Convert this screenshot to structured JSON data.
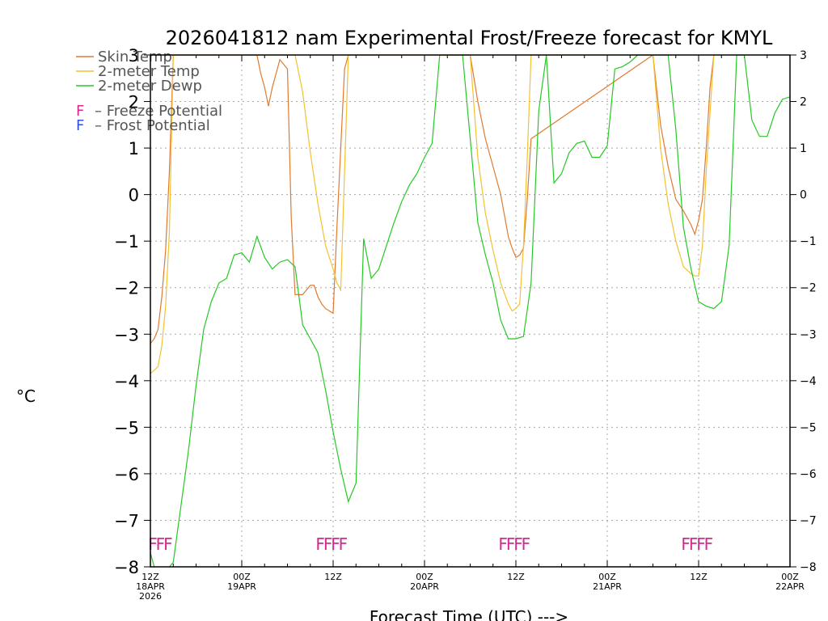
{
  "chart_data": {
    "type": "line",
    "title": "2026041812 nam Experimental Frost/Freeze forecast for KMYL",
    "xlabel": "Forecast Time (UTC) --->",
    "ylabel": "°C",
    "ylim": [
      -8,
      3
    ],
    "xlim": [
      0,
      84
    ],
    "grid": true,
    "y_ticks": [
      {
        "v": 3,
        "label": "3"
      },
      {
        "v": 2,
        "label": "2"
      },
      {
        "v": 1,
        "label": "1"
      },
      {
        "v": 0,
        "label": "0"
      },
      {
        "v": -1,
        "label": "−1"
      },
      {
        "v": -2,
        "label": "−2"
      },
      {
        "v": -3,
        "label": "−3"
      },
      {
        "v": -4,
        "label": "−4"
      },
      {
        "v": -5,
        "label": "−5"
      },
      {
        "v": -6,
        "label": "−6"
      },
      {
        "v": -7,
        "label": "−7"
      },
      {
        "v": -8,
        "label": "−8"
      }
    ],
    "x_ticks": [
      {
        "h": 0,
        "lines": [
          "12Z",
          "18APR",
          "2026"
        ]
      },
      {
        "h": 12,
        "lines": [
          "00Z",
          "19APR"
        ]
      },
      {
        "h": 24,
        "lines": [
          "12Z"
        ]
      },
      {
        "h": 36,
        "lines": [
          "00Z",
          "20APR"
        ]
      },
      {
        "h": 48,
        "lines": [
          "12Z"
        ]
      },
      {
        "h": 60,
        "lines": [
          "00Z",
          "21APR"
        ]
      },
      {
        "h": 72,
        "lines": [
          "12Z"
        ]
      },
      {
        "h": 84,
        "lines": [
          "00Z",
          "22APR"
        ]
      }
    ],
    "series": [
      {
        "name": "Skin Temp",
        "color": "#e07a30",
        "x": [
          0,
          0.5,
          1,
          1.5,
          2,
          2.5,
          3,
          14,
          14.5,
          15,
          15.5,
          16,
          16.5,
          17,
          18,
          18.5,
          19,
          19.5,
          20,
          20.5,
          21,
          21.5,
          22,
          22.5,
          23,
          23.5,
          24,
          24.5,
          25,
          25.5,
          26,
          42,
          43,
          44,
          45,
          46,
          47,
          47.5,
          48,
          48.5,
          49,
          49.5,
          50,
          66,
          67,
          68,
          69,
          70,
          71,
          71.5,
          72,
          72.5,
          73,
          73.5,
          74
        ],
        "y": [
          -3.2,
          -3.1,
          -2.9,
          -2.2,
          -1.2,
          0.5,
          3.0,
          3.0,
          2.6,
          2.3,
          1.9,
          2.3,
          2.6,
          2.9,
          2.7,
          -0.5,
          -2.15,
          -2.15,
          -2.15,
          -2.05,
          -1.95,
          -1.95,
          -2.2,
          -2.35,
          -2.45,
          -2.5,
          -2.55,
          -0.7,
          1.0,
          2.7,
          3.0,
          3.0,
          2.0,
          1.2,
          0.6,
          0.0,
          -0.9,
          -1.15,
          -1.35,
          -1.3,
          -1.15,
          -0.1,
          1.2,
          3.0,
          1.5,
          0.6,
          -0.1,
          -0.35,
          -0.65,
          -0.85,
          -0.55,
          -0.1,
          1.0,
          2.3,
          3.0
        ]
      },
      {
        "name": "2-meter Temp",
        "color": "#f2c230",
        "x": [
          0,
          1,
          1.5,
          2,
          2.5,
          3,
          19,
          20,
          21,
          22,
          23,
          24,
          24.5,
          25,
          26,
          42,
          43,
          44,
          45,
          46,
          47,
          47.5,
          48,
          48.5,
          49,
          49.5,
          50,
          66,
          67,
          68,
          69,
          70,
          71,
          71.5,
          72,
          72.5,
          73,
          74
        ],
        "y": [
          -3.85,
          -3.7,
          -3.25,
          -2.4,
          -0.8,
          3.0,
          3.0,
          2.2,
          0.9,
          -0.2,
          -1.1,
          -1.6,
          -1.9,
          -2.05,
          3.0,
          3.0,
          0.8,
          -0.4,
          -1.2,
          -1.9,
          -2.35,
          -2.5,
          -2.45,
          -2.35,
          -1.1,
          0.8,
          3.0,
          3.0,
          1.0,
          -0.2,
          -1.0,
          -1.55,
          -1.7,
          -1.75,
          -1.75,
          -1.1,
          0.5,
          3.0
        ]
      },
      {
        "name": "2-meter Dewp",
        "color": "#26c826",
        "x": [
          0,
          0.5,
          1,
          1.5,
          2,
          2.5,
          3,
          4,
          5,
          6,
          7,
          8,
          9,
          10,
          11,
          12,
          13,
          14,
          15,
          16,
          17,
          18,
          19,
          20,
          21,
          22,
          23,
          24,
          25,
          26,
          27,
          28,
          29,
          30,
          31,
          32,
          33,
          34,
          35,
          36,
          37,
          38,
          39,
          40,
          41,
          42,
          43,
          44,
          45,
          46,
          47,
          48,
          49,
          50,
          51,
          52,
          53,
          54,
          55,
          56,
          57,
          58,
          59,
          60,
          61,
          62,
          63,
          64,
          65,
          66,
          67,
          68,
          69,
          70,
          71,
          72,
          73,
          74,
          75,
          76,
          77,
          78,
          79,
          80,
          81,
          82,
          83,
          84
        ],
        "y": [
          -7.7,
          -8.0,
          -8.3,
          -8.2,
          -8.1,
          -8.0,
          -7.9,
          -6.7,
          -5.5,
          -4.1,
          -2.9,
          -2.3,
          -1.9,
          -1.8,
          -1.3,
          -1.25,
          -1.45,
          -0.9,
          -1.35,
          -1.6,
          -1.45,
          -1.4,
          -1.55,
          -2.8,
          -3.1,
          -3.4,
          -4.2,
          -5.1,
          -5.9,
          -6.6,
          -6.2,
          -0.95,
          -1.8,
          -1.6,
          -1.1,
          -0.6,
          -0.15,
          0.2,
          0.45,
          0.8,
          1.1,
          3.0,
          3.0,
          3.0,
          3.0,
          1.2,
          -0.6,
          -1.3,
          -1.9,
          -2.7,
          -3.1,
          -3.1,
          -3.05,
          -1.9,
          1.8,
          3.0,
          0.25,
          0.45,
          0.9,
          1.1,
          1.15,
          0.8,
          0.8,
          1.05,
          2.7,
          2.75,
          2.85,
          3.0,
          3.0,
          3.0,
          3.0,
          3.0,
          1.4,
          -0.7,
          -1.6,
          -2.3,
          -2.4,
          -2.45,
          -2.3,
          -1.1,
          3.0,
          3.0,
          1.6,
          1.25,
          1.25,
          1.75,
          2.05,
          2.1
        ]
      }
    ],
    "legend": [
      {
        "label": "Skin Temp",
        "color": "#e07a30"
      },
      {
        "label": "2-meter Temp",
        "color": "#f2c230"
      },
      {
        "label": "2-meter Dewp",
        "color": "#26c826"
      }
    ],
    "potential_key": [
      {
        "symbol": "F",
        "text": "– Freeze Potential",
        "color": "#d82890"
      },
      {
        "symbol": "F",
        "text": "– Frost Potential",
        "color": "#3050e0"
      }
    ],
    "freeze_markers": {
      "color": "#d82890",
      "y": -7.5,
      "hours": [
        0,
        1,
        2,
        22,
        23,
        24,
        25,
        46,
        47,
        48,
        49,
        70,
        71,
        72,
        73
      ]
    }
  }
}
